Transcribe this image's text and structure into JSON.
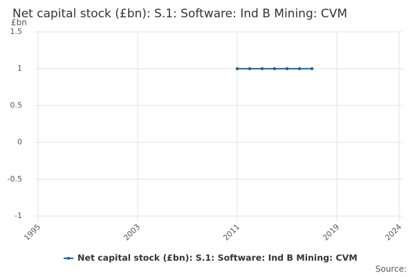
{
  "chart_data": {
    "type": "line",
    "title": "Net capital stock (£bn): S.1: Software: Ind B Mining: CVM",
    "y_label": "£bn",
    "source": "Source:",
    "x": [
      2011,
      2012,
      2013,
      2014,
      2015,
      2016,
      2017
    ],
    "series": [
      {
        "name": "Net capital stock (£bn): S.1: Software: Ind B Mining: CVM",
        "color": "#206095",
        "values": [
          1,
          1,
          1,
          1,
          1,
          1,
          1
        ]
      }
    ],
    "xlim": [
      1995,
      2024
    ],
    "xticks": [
      1995,
      2003,
      2011,
      2019,
      2024
    ],
    "ylim": [
      -1,
      1.5
    ],
    "yticks": [
      -1,
      -0.5,
      0,
      0.5,
      1,
      1.5
    ],
    "grid": true,
    "legend": "bottom"
  }
}
